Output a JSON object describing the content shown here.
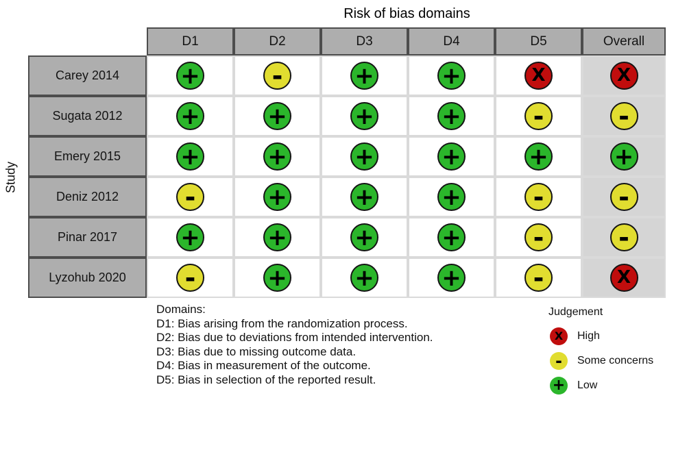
{
  "chart_data": {
    "type": "table",
    "title": "Risk of bias domains",
    "ylabel": "Study",
    "columns": [
      "D1",
      "D2",
      "D3",
      "D4",
      "D5",
      "Overall"
    ],
    "rows": [
      {
        "study": "Carey 2014",
        "judgements": [
          "low",
          "some_concerns",
          "low",
          "low",
          "high",
          "high"
        ]
      },
      {
        "study": "Sugata 2012",
        "judgements": [
          "low",
          "low",
          "low",
          "low",
          "some_concerns",
          "some_concerns"
        ]
      },
      {
        "study": "Emery 2015",
        "judgements": [
          "low",
          "low",
          "low",
          "low",
          "low",
          "low"
        ]
      },
      {
        "study": "Deniz 2012",
        "judgements": [
          "some_concerns",
          "low",
          "low",
          "low",
          "some_concerns",
          "some_concerns"
        ]
      },
      {
        "study": "Pinar 2017",
        "judgements": [
          "low",
          "low",
          "low",
          "low",
          "some_concerns",
          "some_concerns"
        ]
      },
      {
        "study": "Lyzohub 2020",
        "judgements": [
          "some_concerns",
          "low",
          "low",
          "low",
          "some_concerns",
          "high"
        ]
      }
    ],
    "judgements": {
      "low": {
        "label": "Low",
        "symbol": "+",
        "color": "#2bb62b"
      },
      "some_concerns": {
        "label": "Some concerns",
        "symbol": "-",
        "color": "#e1dd30"
      },
      "high": {
        "label": "High",
        "symbol": "X",
        "color": "#c00d0d"
      }
    },
    "legend": {
      "title": "Judgement",
      "items": [
        {
          "key": "high",
          "label": "High"
        },
        {
          "key": "some_concerns",
          "label": "Some concerns"
        },
        {
          "key": "low",
          "label": "Low"
        }
      ]
    },
    "footnote": {
      "heading": "Domains:",
      "lines": [
        "D1: Bias arising from the randomization process.",
        "D2: Bias due to deviations from intended intervention.",
        "D3: Bias due to missing outcome data.",
        "D4: Bias in measurement of the outcome.",
        "D5: Bias in selection of the reported result."
      ]
    },
    "layout": {
      "header_bg": "#aeaeae",
      "overall_column_bg": "#d5d5d5",
      "grid_line_dark": "#4d4d4d",
      "grid_line_light": "#dadada"
    }
  }
}
